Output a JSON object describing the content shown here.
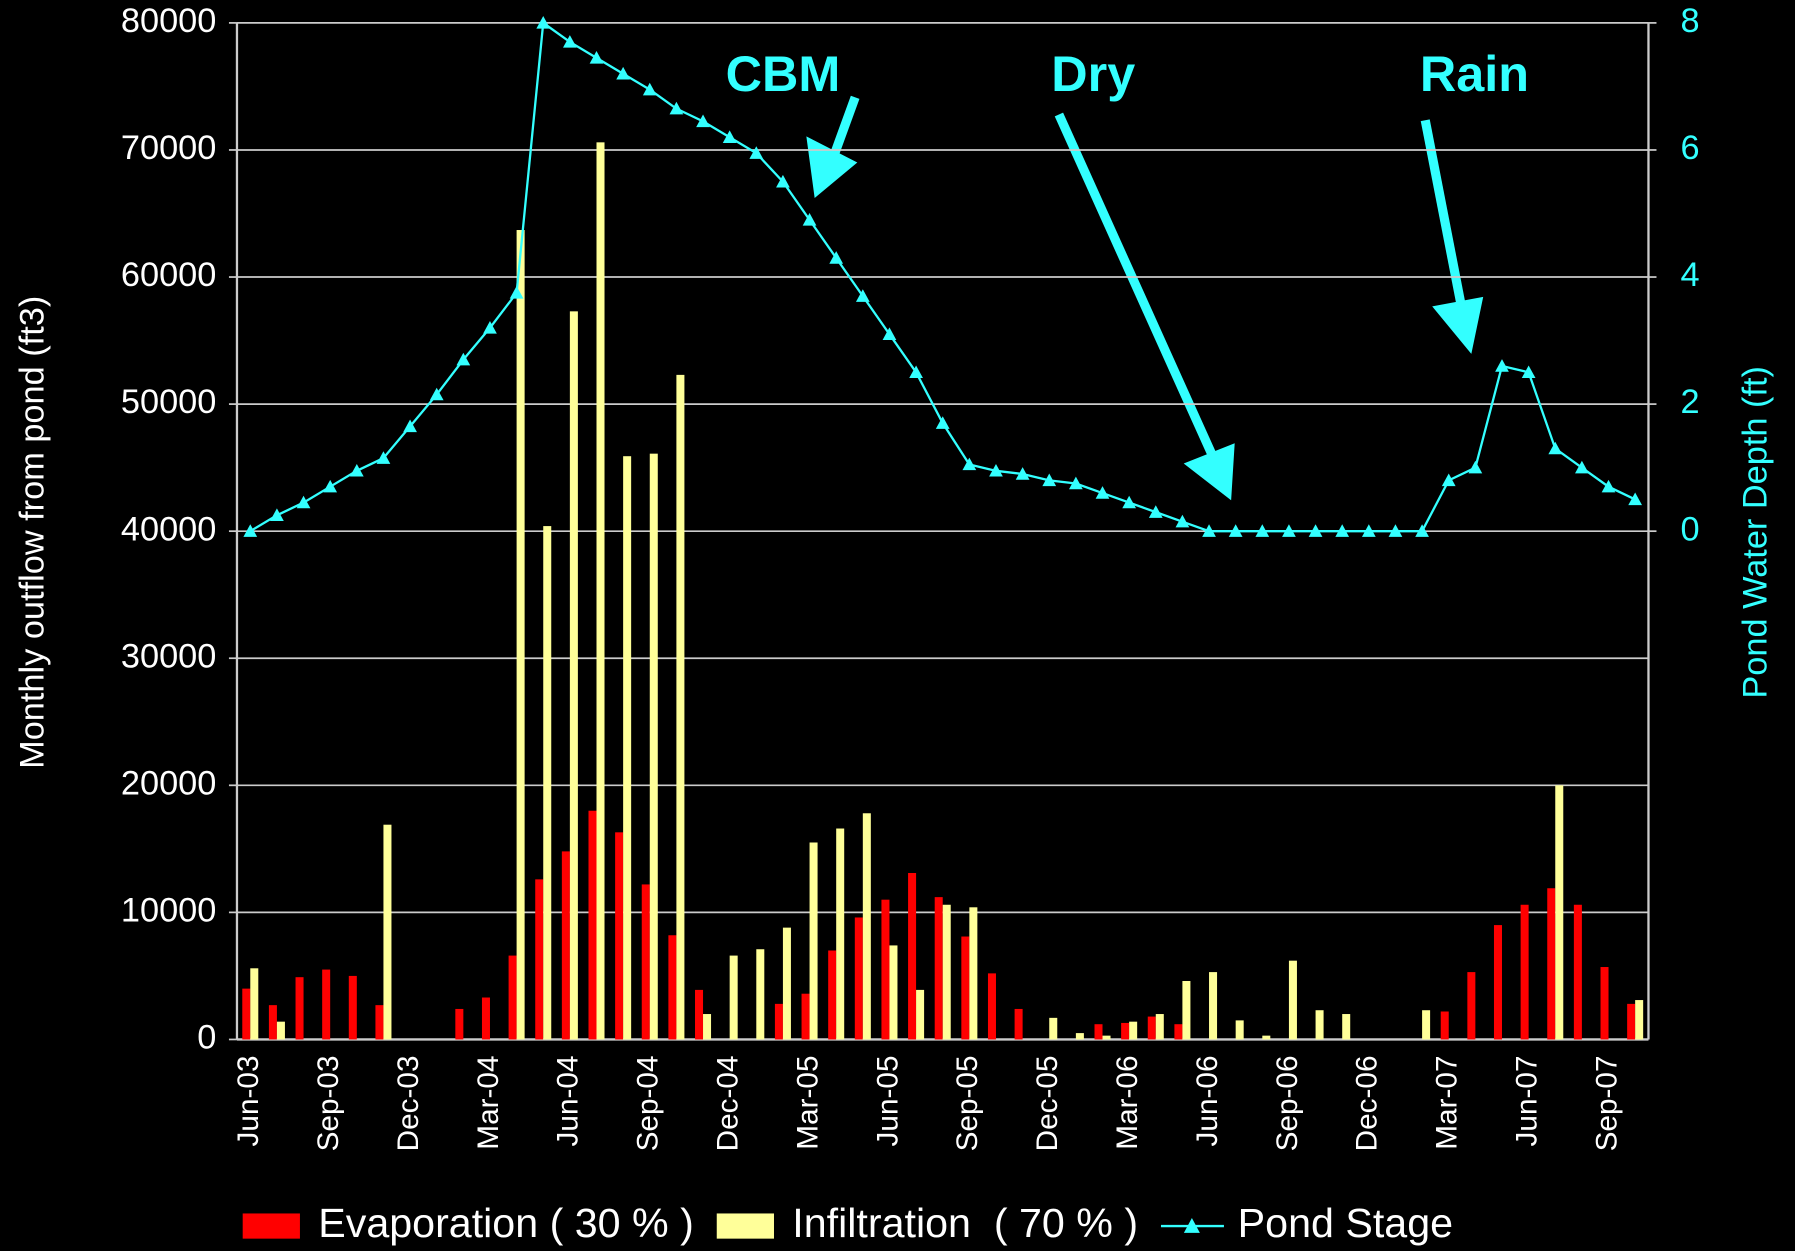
{
  "chart_data": {
    "type": "bar",
    "categories": [
      "Jun-03",
      null,
      null,
      "Sep-03",
      null,
      null,
      "Dec-03",
      null,
      null,
      "Mar-04",
      null,
      null,
      "Jun-04",
      null,
      null,
      "Sep-04",
      null,
      null,
      "Dec-04",
      null,
      null,
      "Mar-05",
      null,
      null,
      "Jun-05",
      null,
      null,
      "Sep-05",
      null,
      null,
      "Dec-05",
      null,
      null,
      "Mar-06",
      null,
      null,
      "Jun-06",
      null,
      null,
      "Sep-06",
      null,
      null,
      "Dec-06",
      null,
      null,
      "Mar-07",
      null,
      null,
      "Jun-07",
      null,
      null,
      "Sep-07",
      null
    ],
    "series": [
      {
        "name": "Evaporation ( 30 % )",
        "color": "#ff0000",
        "values": [
          4000,
          2700,
          4900,
          5500,
          5000,
          2700,
          0,
          0,
          2400,
          3300,
          6600,
          12600,
          14800,
          18000,
          16300,
          12200,
          8200,
          3900,
          0,
          0,
          2800,
          3600,
          7000,
          9600,
          11000,
          13100,
          11200,
          8100,
          5200,
          2400,
          0,
          0,
          1200,
          1300,
          1800,
          1200,
          0,
          0,
          0,
          0,
          0,
          0,
          0,
          0,
          0,
          2200,
          5300,
          9000,
          10600,
          11900,
          10600,
          5700,
          2800
        ]
      },
      {
        "name": "Infiltration  ( 70 % )",
        "color": "#ffff99",
        "values": [
          5600,
          1400,
          0,
          0,
          0,
          16900,
          0,
          0,
          0,
          0,
          63700,
          40400,
          57300,
          70600,
          45900,
          46100,
          52300,
          2000,
          6600,
          7100,
          8800,
          15500,
          16600,
          17800,
          7400,
          3900,
          10600,
          10400,
          0,
          0,
          1700,
          500,
          300,
          1400,
          2000,
          4600,
          5300,
          1500,
          300,
          6200,
          2300,
          2000,
          0,
          0,
          2300,
          0,
          0,
          0,
          0,
          20000,
          0,
          0,
          3100
        ]
      },
      {
        "name": "Pond Stage",
        "color": "#33ffff",
        "type": "line",
        "axis": "y2",
        "values": [
          0,
          0.25,
          0.45,
          0.7,
          0.95,
          1.15,
          1.65,
          2.15,
          2.7,
          3.2,
          3.75,
          8.0,
          7.7,
          7.45,
          7.2,
          6.95,
          6.65,
          6.45,
          6.2,
          5.95,
          5.5,
          4.9,
          4.3,
          3.7,
          3.1,
          2.5,
          1.7,
          1.05,
          0.95,
          0.9,
          0.8,
          0.75,
          0.6,
          0.45,
          0.3,
          0.15,
          0,
          0,
          0,
          0,
          0,
          0,
          0,
          0,
          0,
          0.8,
          1.0,
          2.6,
          2.5,
          1.3,
          1.0,
          0.7,
          0.5
        ]
      }
    ],
    "y_label": "Monthly outflow from pond (ft3)",
    "y2_label": "Pond Water Depth (ft)",
    "ylim": [
      0,
      80000
    ],
    "yticks": [
      0,
      10000,
      20000,
      30000,
      40000,
      50000,
      60000,
      70000,
      80000
    ],
    "y2lim": [
      -8,
      8
    ],
    "y2ticks": [
      0,
      2,
      4,
      6,
      8
    ],
    "grid": true,
    "legend": "bottom",
    "annotations": [
      "CBM",
      "Dry",
      "Rain"
    ]
  }
}
